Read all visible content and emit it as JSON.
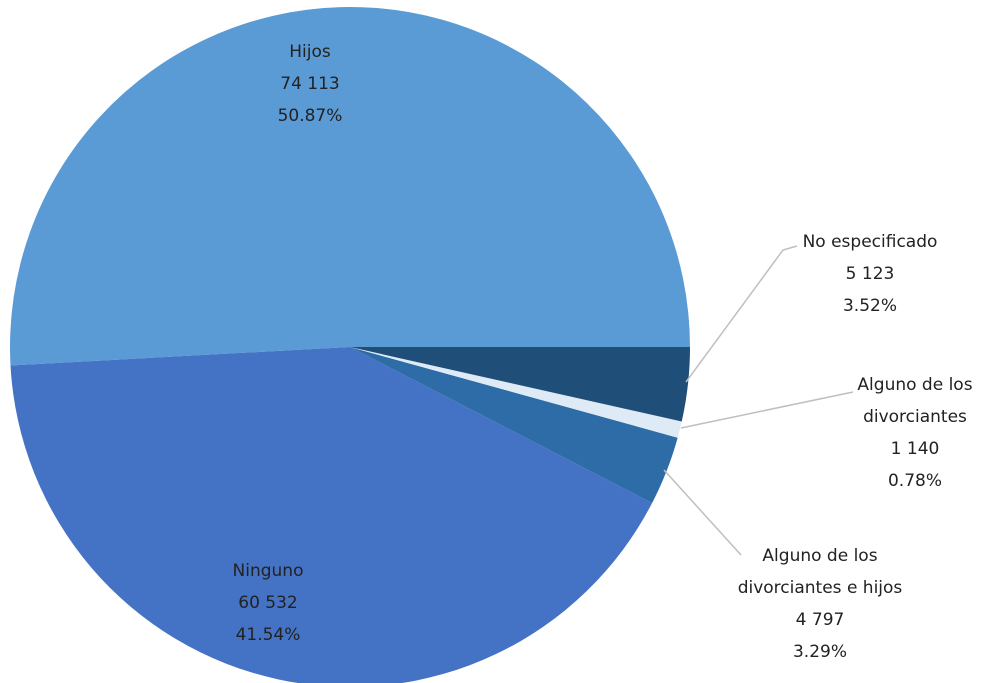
{
  "chart_data": {
    "type": "pie",
    "categories": [
      "Hijos",
      "Ninguno",
      "Alguno de los divorciantes e hijos",
      "Alguno de los divorciantes",
      "No especificado"
    ],
    "values": [
      74113,
      60532,
      4797,
      1140,
      5123
    ],
    "value_labels": [
      "74 113",
      "60 532",
      "4 797",
      "1 140",
      "5 123"
    ],
    "percentages": [
      50.87,
      41.54,
      3.29,
      0.78,
      3.52
    ],
    "percentage_labels": [
      "50.87%",
      "41.54%",
      "3.29%",
      "0.78%",
      "3.52%"
    ],
    "colors": [
      "#5b9bd5",
      "#4472c4",
      "#2e6ca7",
      "#deebf7",
      "#1f4e79"
    ]
  }
}
